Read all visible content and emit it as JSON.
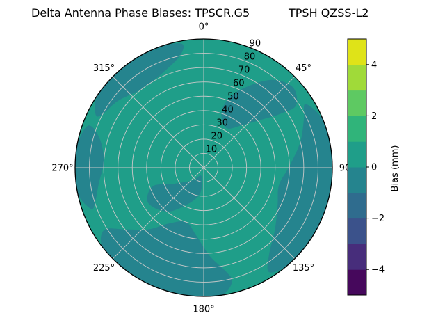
{
  "title": {
    "left": "Delta Antenna Phase Biases: TPSCR.G5",
    "right": "TPSH QZSS-L2"
  },
  "chart_data": {
    "type": "heatmap",
    "subtype": "polar_filled_contour",
    "title": "Delta Antenna Phase Biases: TPSCR.G5    TPSH QZSS-L2",
    "value_label": "Bias (mm)",
    "value_range": [
      -5,
      5
    ],
    "contour_level_step_mm": 1,
    "colormap": "viridis",
    "grid_color": "#c8c8c8",
    "outline_color": "#000000",
    "azimuth_ticks": [
      {
        "deg": 0,
        "label": "0°"
      },
      {
        "deg": 45,
        "label": "45°"
      },
      {
        "deg": 90,
        "label": "90"
      },
      {
        "deg": 135,
        "label": "135°"
      },
      {
        "deg": 180,
        "label": "180°"
      },
      {
        "deg": 225,
        "label": "225°"
      },
      {
        "deg": 270,
        "label": "270°"
      },
      {
        "deg": 315,
        "label": "315°"
      }
    ],
    "radial_ticks": [
      {
        "r": 10,
        "label": "10"
      },
      {
        "r": 20,
        "label": "20"
      },
      {
        "r": 30,
        "label": "30"
      },
      {
        "r": 40,
        "label": "40"
      },
      {
        "r": 50,
        "label": "50"
      },
      {
        "r": 60,
        "label": "60"
      },
      {
        "r": 70,
        "label": "70"
      },
      {
        "r": 80,
        "label": "80"
      },
      {
        "r": 90,
        "label": "90"
      }
    ],
    "radial_axis_max": 90,
    "radial_label_azimuth_deg": 22.5,
    "bands_present": [
      {
        "bias_range_mm": [
          0,
          1
        ],
        "color": "#1f9e89",
        "coverage": "dominant background of the disk"
      },
      {
        "bias_range_mm": [
          -1,
          0
        ],
        "color": "#25848e",
        "coverage": "patches near rim (E, S, W, NW), NE sector and near center"
      }
    ],
    "regions": [
      {
        "name": "east-rim-patch",
        "bias_range_mm": [
          -1,
          0
        ],
        "color": "#25848e",
        "polygon_az_el": [
          [
            58,
            6
          ],
          [
            68,
            0
          ],
          [
            80,
            0
          ],
          [
            92,
            0
          ],
          [
            104,
            0
          ],
          [
            116,
            0
          ],
          [
            128,
            0
          ],
          [
            140,
            0
          ],
          [
            148,
            4
          ],
          [
            143,
            14
          ],
          [
            131,
            24
          ],
          [
            117,
            32
          ],
          [
            103,
            36
          ],
          [
            89,
            30
          ],
          [
            75,
            20
          ],
          [
            64,
            12
          ]
        ]
      },
      {
        "name": "northeast-patch",
        "bias_range_mm": [
          -1,
          0
        ],
        "color": "#25848e",
        "polygon_az_el": [
          [
            18,
            50
          ],
          [
            30,
            58
          ],
          [
            42,
            50
          ],
          [
            50,
            38
          ],
          [
            55,
            24
          ],
          [
            56,
            12
          ],
          [
            48,
            6
          ],
          [
            38,
            12
          ],
          [
            28,
            26
          ],
          [
            20,
            38
          ]
        ]
      },
      {
        "name": "south-patch",
        "bias_range_mm": [
          -1,
          0
        ],
        "color": "#25848e",
        "polygon_az_el": [
          [
            166,
            8
          ],
          [
            172,
            0
          ],
          [
            184,
            0
          ],
          [
            196,
            0
          ],
          [
            208,
            0
          ],
          [
            220,
            0
          ],
          [
            232,
            0
          ],
          [
            238,
            8
          ],
          [
            232,
            20
          ],
          [
            222,
            32
          ],
          [
            212,
            44
          ],
          [
            198,
            50
          ],
          [
            186,
            42
          ],
          [
            176,
            28
          ],
          [
            168,
            16
          ]
        ]
      },
      {
        "name": "center-patch",
        "bias_range_mm": [
          -1,
          0
        ],
        "color": "#25848e",
        "polygon_az_el": [
          [
            196,
            84
          ],
          [
            222,
            78
          ],
          [
            242,
            66
          ],
          [
            250,
            52
          ],
          [
            238,
            44
          ],
          [
            220,
            50
          ],
          [
            204,
            62
          ],
          [
            188,
            72
          ]
        ]
      },
      {
        "name": "west-rim-patch",
        "bias_range_mm": [
          -1,
          0
        ],
        "color": "#25848e",
        "polygon_az_el": [
          [
            250,
            6
          ],
          [
            258,
            0
          ],
          [
            268,
            0
          ],
          [
            280,
            0
          ],
          [
            290,
            4
          ],
          [
            286,
            14
          ],
          [
            274,
            20
          ],
          [
            262,
            16
          ],
          [
            252,
            10
          ]
        ]
      },
      {
        "name": "northwest-rim-patch",
        "bias_range_mm": [
          -1,
          0
        ],
        "color": "#25848e",
        "polygon_az_el": [
          [
            296,
            6
          ],
          [
            304,
            0
          ],
          [
            316,
            0
          ],
          [
            328,
            0
          ],
          [
            340,
            0
          ],
          [
            350,
            2
          ],
          [
            348,
            10
          ],
          [
            336,
            18
          ],
          [
            322,
            20
          ],
          [
            308,
            14
          ],
          [
            298,
            10
          ]
        ]
      }
    ],
    "colorbar": {
      "label": "Bias (mm)",
      "value_range": [
        -5,
        5
      ],
      "n_bands": 10,
      "band_colors_bottom_to_top": [
        "#46085c",
        "#472d7b",
        "#3b528b",
        "#2f6c8e",
        "#25848e",
        "#1f9e89",
        "#30b47a",
        "#5ec962",
        "#a0da39",
        "#dfe318"
      ],
      "ticks": [
        {
          "value": -4,
          "label": "−4"
        },
        {
          "value": -2,
          "label": "−2"
        },
        {
          "value": 0,
          "label": "0"
        },
        {
          "value": 2,
          "label": "2"
        },
        {
          "value": 4,
          "label": "4"
        }
      ]
    }
  }
}
